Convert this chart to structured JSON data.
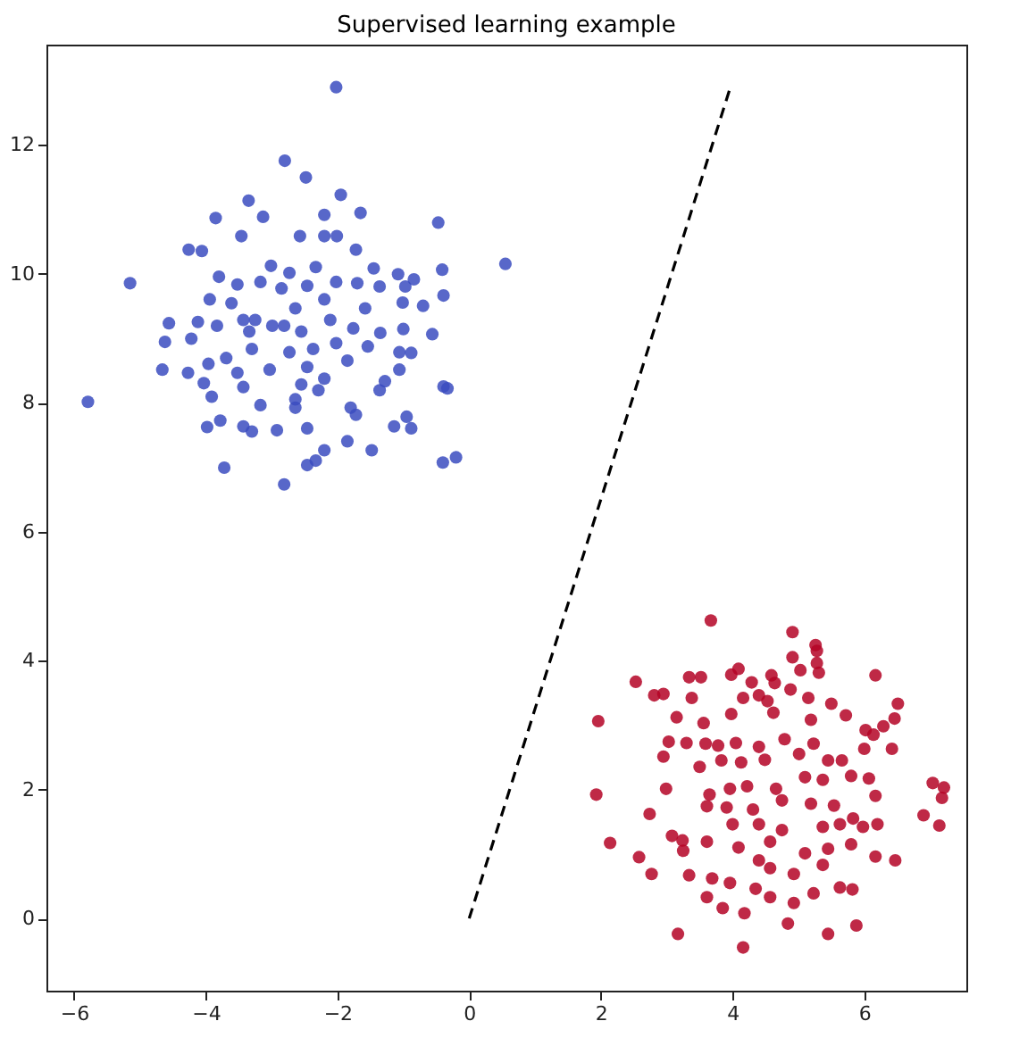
{
  "chart_data": {
    "type": "scatter",
    "title": "Supervised learning example",
    "xlim": [
      -6.42,
      7.55
    ],
    "ylim": [
      -1.12,
      13.55
    ],
    "xticks": [
      -6,
      -4,
      -2,
      0,
      2,
      4,
      6
    ],
    "yticks": [
      0,
      2,
      4,
      6,
      8,
      10,
      12
    ],
    "grid": false,
    "marker": "circle",
    "series": [
      {
        "color": "#3b4cc0",
        "x": [
          -2.02,
          -2.8,
          -2.48,
          -1.95,
          -3.35,
          -3.85,
          -3.13,
          -2.2,
          -1.65,
          -0.47,
          -3.46,
          -2.57,
          -2.2,
          -2.01,
          -4.26,
          -4.06,
          -1.72,
          0.55,
          -5.15,
          -3.8,
          -3.01,
          -2.73,
          -2.33,
          -1.45,
          -1.08,
          -0.84,
          -0.41,
          -3.94,
          -3.52,
          -3.17,
          -2.85,
          -2.46,
          -2.02,
          -1.7,
          -1.36,
          -0.97,
          -0.39,
          -4.56,
          -4.12,
          -3.61,
          -3.25,
          -2.64,
          -2.2,
          -1.58,
          -1.01,
          -0.7,
          -4.62,
          -4.22,
          -3.83,
          -3.34,
          -2.99,
          -2.55,
          -2.11,
          -1.76,
          -1.35,
          -1.0,
          -0.56,
          -4.66,
          -4.27,
          -3.96,
          -3.69,
          -3.3,
          -2.73,
          -2.37,
          -2.02,
          -1.54,
          -1.06,
          -0.88,
          -4.03,
          -3.52,
          -3.03,
          -2.46,
          -2.2,
          -1.85,
          -1.28,
          -1.06,
          -0.39,
          -0.33,
          -5.79,
          -3.91,
          -3.43,
          -3.17,
          -2.64,
          -2.29,
          -1.8,
          -1.36,
          -3.78,
          -3.98,
          -3.43,
          -3.3,
          -2.92,
          -2.46,
          -1.72,
          -1.14,
          -0.95,
          -0.88,
          -2.2,
          -2.33,
          -2.46,
          -1.85,
          -1.48,
          -0.4,
          -0.2,
          -3.72,
          -2.81,
          -2.64,
          -2.55,
          -2.81,
          -3.43
        ],
        "values": [
          12.89,
          11.75,
          11.49,
          11.22,
          11.13,
          10.86,
          10.88,
          10.91,
          10.94,
          10.79,
          10.58,
          10.58,
          10.58,
          10.58,
          10.37,
          10.35,
          10.37,
          10.15,
          9.85,
          9.95,
          10.12,
          10.01,
          10.1,
          10.08,
          9.99,
          9.91,
          10.06,
          9.6,
          9.83,
          9.87,
          9.77,
          9.81,
          9.87,
          9.85,
          9.8,
          9.8,
          9.66,
          9.23,
          9.25,
          9.54,
          9.28,
          9.46,
          9.6,
          9.46,
          9.55,
          9.5,
          8.94,
          8.99,
          9.19,
          9.1,
          9.19,
          9.1,
          9.28,
          9.15,
          9.08,
          9.14,
          9.06,
          8.51,
          8.46,
          8.6,
          8.69,
          8.83,
          8.78,
          8.83,
          8.92,
          8.87,
          8.78,
          8.77,
          8.3,
          8.46,
          8.51,
          8.55,
          8.37,
          8.65,
          8.33,
          8.51,
          8.25,
          8.22,
          8.01,
          8.09,
          8.24,
          7.96,
          8.05,
          8.19,
          7.92,
          8.19,
          7.72,
          7.62,
          7.63,
          7.55,
          7.57,
          7.6,
          7.81,
          7.63,
          7.78,
          7.6,
          7.26,
          7.1,
          7.03,
          7.4,
          7.26,
          7.07,
          7.15,
          6.99,
          6.73,
          7.92,
          8.28,
          9.19,
          9.28
        ]
      },
      {
        "color": "#b40426",
        "x": [
          3.67,
          4.91,
          5.26,
          5.28,
          5.28,
          4.91,
          5.03,
          5.31,
          6.17,
          2.53,
          3.34,
          3.52,
          3.98,
          4.09,
          4.29,
          4.59,
          4.64,
          4.88,
          2.81,
          2.95,
          3.38,
          4.16,
          4.4,
          4.53,
          5.15,
          5.5,
          5.72,
          6.51,
          6.46,
          1.96,
          3.15,
          3.56,
          3.98,
          4.62,
          5.19,
          6.02,
          6.29,
          6.14,
          3.03,
          3.3,
          3.59,
          3.78,
          4.05,
          4.4,
          4.79,
          5.23,
          6.0,
          6.42,
          2.95,
          3.5,
          3.83,
          4.13,
          4.49,
          5.01,
          5.45,
          5.66,
          5.8,
          6.07,
          7.04,
          7.21,
          7.18,
          1.93,
          2.99,
          3.65,
          3.96,
          4.22,
          4.66,
          5.1,
          5.37,
          6.17,
          2.74,
          3.61,
          3.91,
          4.31,
          4.75,
          5.19,
          5.54,
          5.98,
          6.2,
          6.9,
          7.14,
          2.14,
          3.08,
          3.24,
          3.61,
          4.0,
          4.4,
          4.75,
          5.37,
          5.63,
          5.83,
          3.25,
          4.09,
          4.57,
          5.1,
          5.8,
          6.17,
          6.47,
          2.58,
          2.77,
          3.34,
          3.69,
          3.96,
          4.4,
          4.57,
          4.93,
          5.37,
          5.45,
          3.61,
          3.85,
          4.35,
          4.57,
          4.93,
          5.23,
          5.63,
          5.82,
          3.17,
          4.18,
          4.84,
          5.45,
          5.88,
          4.16
        ],
        "values": [
          4.62,
          4.44,
          4.24,
          4.15,
          3.96,
          4.05,
          3.85,
          3.81,
          3.77,
          3.67,
          3.74,
          3.74,
          3.78,
          3.87,
          3.66,
          3.77,
          3.65,
          3.55,
          3.46,
          3.48,
          3.42,
          3.42,
          3.46,
          3.37,
          3.42,
          3.33,
          3.15,
          3.33,
          3.1,
          3.06,
          3.12,
          3.03,
          3.17,
          3.19,
          3.08,
          2.92,
          2.98,
          2.85,
          2.74,
          2.72,
          2.71,
          2.68,
          2.72,
          2.66,
          2.78,
          2.71,
          2.63,
          2.63,
          2.51,
          2.35,
          2.45,
          2.42,
          2.46,
          2.55,
          2.45,
          2.45,
          2.21,
          2.17,
          2.1,
          2.03,
          1.87,
          1.92,
          2.01,
          1.92,
          2.01,
          2.05,
          2.01,
          2.19,
          2.15,
          1.9,
          1.62,
          1.74,
          1.72,
          1.69,
          1.83,
          1.78,
          1.75,
          1.42,
          1.46,
          1.6,
          1.44,
          1.17,
          1.28,
          1.21,
          1.19,
          1.46,
          1.46,
          1.37,
          1.42,
          1.46,
          1.55,
          1.05,
          1.1,
          1.19,
          1.01,
          1.15,
          0.96,
          0.9,
          0.95,
          0.69,
          0.67,
          0.62,
          0.55,
          0.9,
          0.78,
          0.69,
          0.83,
          1.08,
          0.33,
          0.16,
          0.46,
          0.33,
          0.24,
          0.39,
          0.48,
          0.45,
          -0.24,
          0.08,
          -0.08,
          -0.24,
          -0.11,
          -0.45
        ]
      },
      {
        "type": "line",
        "color": "#000000",
        "line_style": "dashed",
        "marker": "none",
        "x": [
          0,
          3.96
        ],
        "values": [
          0,
          12.87
        ]
      }
    ]
  }
}
